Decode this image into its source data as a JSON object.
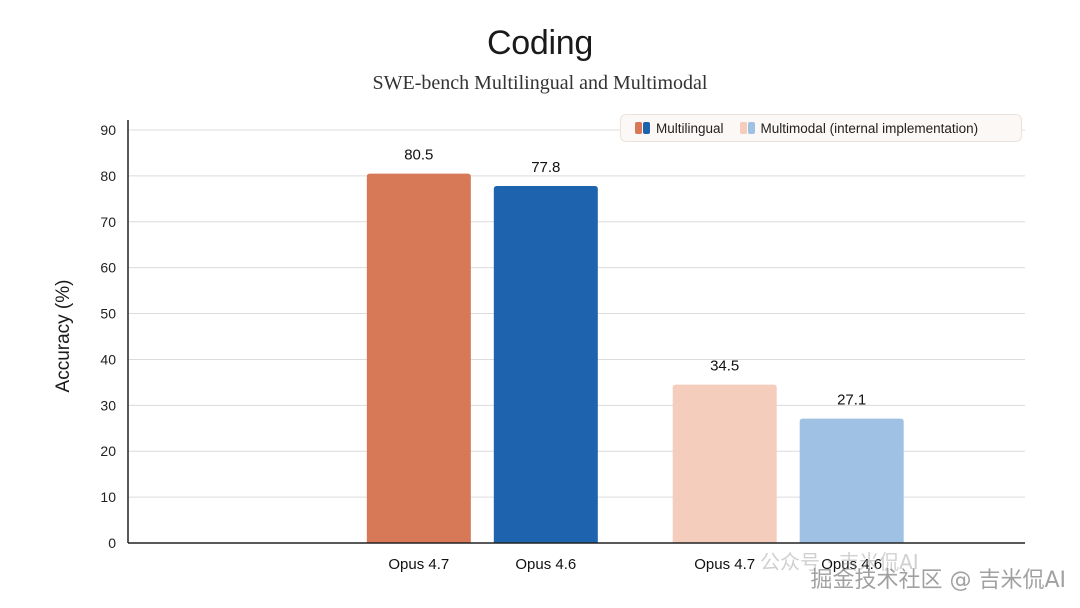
{
  "chart_data": {
    "type": "bar",
    "title": "Coding",
    "subtitle": "SWE-bench Multilingual and Multimodal",
    "ylabel": "Accuracy (%)",
    "ylim": [
      0,
      90
    ],
    "yticks": [
      "0",
      "10",
      "20",
      "30",
      "40",
      "50",
      "60",
      "70",
      "80",
      "90"
    ],
    "grid": true,
    "legend_position": "top-right",
    "groups": [
      {
        "name": "Multilingual",
        "bars": [
          {
            "label": "Opus 4.7",
            "value": 80.5,
            "value_label": "80.5",
            "color": "#d77857"
          },
          {
            "label": "Opus 4.6",
            "value": 77.8,
            "value_label": "77.8",
            "color": "#1d63ad"
          }
        ]
      },
      {
        "name": "Multimodal (internal implementation)",
        "bars": [
          {
            "label": "Opus 4.7",
            "value": 34.5,
            "value_label": "34.5",
            "color": "#f5cdbd"
          },
          {
            "label": "Opus 4.6",
            "value": 27.1,
            "value_label": "27.1",
            "color": "#9fc1e3"
          }
        ]
      }
    ],
    "legend": [
      {
        "label": "Multilingual",
        "colors": [
          "#d77857",
          "#1d63ad"
        ]
      },
      {
        "label": "Multimodal (internal implementation)",
        "colors": [
          "#f5cdbd",
          "#9fc1e3"
        ]
      }
    ]
  },
  "watermark": {
    "line1": "公众号 · 吉米侃AI",
    "line2": "掘金技术社区 @ 吉米侃AI"
  }
}
